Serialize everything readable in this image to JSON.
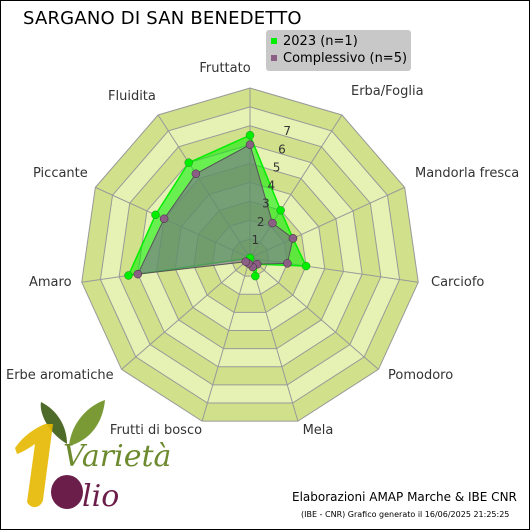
{
  "chart_data": {
    "type": "radar",
    "title": "SARGANO DI SAN BENEDETTO",
    "axes": [
      "Fruttato",
      "Erba/Foglia",
      "Mandorla fresca",
      "Carciofo",
      "Pomodoro",
      "Mela",
      "Frutti di bosco",
      "Erbe aromatiche",
      "Amaro",
      "Piccante",
      "Fluidita"
    ],
    "rlim": [
      0,
      9
    ],
    "ticks": [
      1,
      2,
      3,
      4,
      5,
      6,
      7
    ],
    "grid": true,
    "legend_position": "top-right",
    "series": [
      {
        "name": "2023 (n=1)",
        "values": [
          6.5,
          3.0,
          2.5,
          3.0,
          0.5,
          1.0,
          0.0,
          0.0,
          6.5,
          5.5,
          6.0
        ],
        "color": "#00ee00",
        "fill": "#00ee00"
      },
      {
        "name": "Complessivo (n=5)",
        "values": [
          6.0,
          2.2,
          2.5,
          2.0,
          0.5,
          0.5,
          0.3,
          0.3,
          6.0,
          5.0,
          5.3
        ],
        "color": "#8b5e83",
        "fill": "#7f6a8e"
      }
    ]
  },
  "colors": {
    "band_dark": "#d0e08b",
    "band_light": "#e6f2b4",
    "grid_line": "#999999"
  },
  "credits": {
    "main": "Elaborazioni AMAP Marche & IBE CNR",
    "sub": "(IBE - CNR) Grafico generato il 16/06/2025 21:25:25"
  },
  "logo": {
    "number": "1",
    "word1": "Varietà",
    "word2": "Olio"
  }
}
